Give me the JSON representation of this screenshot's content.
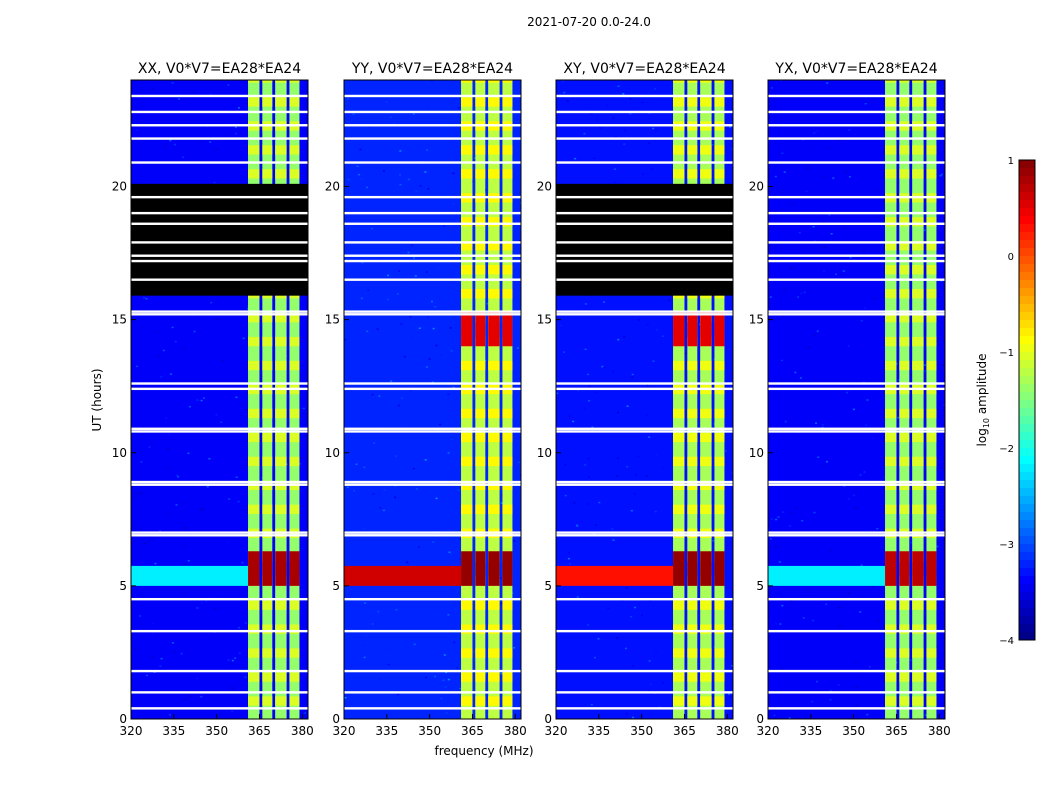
{
  "figure": {
    "suptitle": "2021-07-20 0.0-24.0",
    "xlabel": "frequency (MHz)",
    "ylabel": "UT (hours)"
  },
  "chart_data": {
    "type": "heatmap",
    "description_note": "Dynamic spectra: frequency vs UT, color = log10 amplitude",
    "xlim": [
      320,
      382
    ],
    "ylim": [
      0,
      24
    ],
    "x_ticks": [
      320,
      335,
      350,
      365,
      380
    ],
    "y_ticks": [
      0,
      5,
      10,
      15,
      20
    ],
    "panels": [
      {
        "title": "XX, V0*V7=EA28*EA24",
        "background_log_amp": -3.4,
        "blanked_hours": [
          [
            15.9,
            20.1
          ]
        ],
        "gap_hours": [
          0.4,
          1.0,
          1.8,
          3.3,
          4.5,
          6.9,
          7.0,
          8.8,
          8.9,
          10.8,
          10.9,
          12.4,
          12.6,
          15.2,
          15.3,
          16.5,
          17.2,
          17.4,
          17.9,
          18.6,
          19.0,
          19.6,
          20.9,
          21.8,
          22.3,
          22.8,
          23.4
        ],
        "rfi_bands_mhz": [
          [
            361,
            365
          ],
          [
            366,
            369.5
          ],
          [
            370.5,
            374.5
          ],
          [
            375.5,
            379
          ]
        ],
        "rfi_log_amp": -1.4,
        "rfi_active_hours": [
          [
            0,
            20.2
          ],
          [
            20.2,
            24
          ]
        ],
        "burst": {
          "hours": [
            5.0,
            6.3
          ],
          "start_mhz": 320,
          "log_amp": -2.2,
          "rfi_log_amp": 0.8
        }
      },
      {
        "title": "YY, V0*V7=EA28*EA24",
        "background_log_amp": -3.2,
        "blanked_hours": [],
        "gap_hours": [
          0.4,
          1.0,
          1.8,
          3.3,
          4.5,
          6.9,
          7.0,
          8.8,
          8.9,
          10.8,
          10.9,
          12.4,
          12.6,
          15.2,
          15.3,
          16.5,
          17.2,
          17.4,
          17.9,
          18.6,
          19.0,
          19.6,
          20.9,
          21.8,
          22.3,
          22.8,
          23.4
        ],
        "rfi_bands_mhz": [
          [
            361,
            365
          ],
          [
            366,
            369.5
          ],
          [
            370.5,
            374.5
          ],
          [
            375.5,
            379
          ]
        ],
        "rfi_log_amp": -1.2,
        "rfi_active_hours": [
          [
            0,
            24
          ]
        ],
        "burst": {
          "hours": [
            5.0,
            6.3
          ],
          "start_mhz": 320,
          "log_amp": 0.6,
          "rfi_log_amp": 0.9
        },
        "hot_hours": [
          [
            14.0,
            15.3
          ]
        ]
      },
      {
        "title": "XY, V0*V7=EA28*EA24",
        "background_log_amp": -3.3,
        "blanked_hours": [
          [
            15.9,
            20.1
          ]
        ],
        "gap_hours": [
          0.4,
          1.0,
          1.8,
          3.3,
          4.5,
          6.9,
          7.0,
          8.8,
          8.9,
          10.8,
          10.9,
          12.4,
          12.6,
          15.2,
          15.3,
          16.5,
          17.2,
          17.4,
          17.9,
          18.6,
          19.0,
          19.6,
          20.9,
          21.8,
          22.3,
          22.8,
          23.4
        ],
        "rfi_bands_mhz": [
          [
            361,
            365
          ],
          [
            366,
            369.5
          ],
          [
            370.5,
            374.5
          ],
          [
            375.5,
            379
          ]
        ],
        "rfi_log_amp": -1.3,
        "rfi_active_hours": [
          [
            0,
            24
          ]
        ],
        "burst": {
          "hours": [
            5.0,
            6.3
          ],
          "start_mhz": 320,
          "log_amp": 0.3,
          "rfi_log_amp": 0.9
        },
        "hot_hours": [
          [
            14.0,
            15.3
          ]
        ]
      },
      {
        "title": "YX, V0*V7=EA28*EA24",
        "background_log_amp": -3.4,
        "blanked_hours": [],
        "gap_hours": [
          0.4,
          1.0,
          1.8,
          3.3,
          4.5,
          6.9,
          7.0,
          8.8,
          8.9,
          10.8,
          10.9,
          12.4,
          12.6,
          15.2,
          15.3,
          16.5,
          17.2,
          17.4,
          17.9,
          18.6,
          19.0,
          19.6,
          20.9,
          21.8,
          22.3,
          22.8,
          23.4
        ],
        "rfi_bands_mhz": [
          [
            361,
            365
          ],
          [
            366,
            369.5
          ],
          [
            370.5,
            374.5
          ],
          [
            375.5,
            379
          ]
        ],
        "rfi_log_amp": -1.4,
        "rfi_active_hours": [
          [
            0,
            24
          ]
        ],
        "burst": {
          "hours": [
            5.0,
            6.3
          ],
          "start_mhz": 320,
          "log_amp": -2.2,
          "rfi_log_amp": 0.7
        }
      }
    ],
    "colorbar": {
      "label_prefix": "log",
      "label_sub": "10",
      "label_suffix": " amplitude",
      "range": [
        -4,
        1
      ],
      "ticks": [
        1,
        0,
        -1,
        -2,
        -3,
        -4
      ],
      "tick_labels": [
        "1",
        "0",
        "−1",
        "−2",
        "−3",
        "−4"
      ],
      "colormap": "jet"
    }
  }
}
